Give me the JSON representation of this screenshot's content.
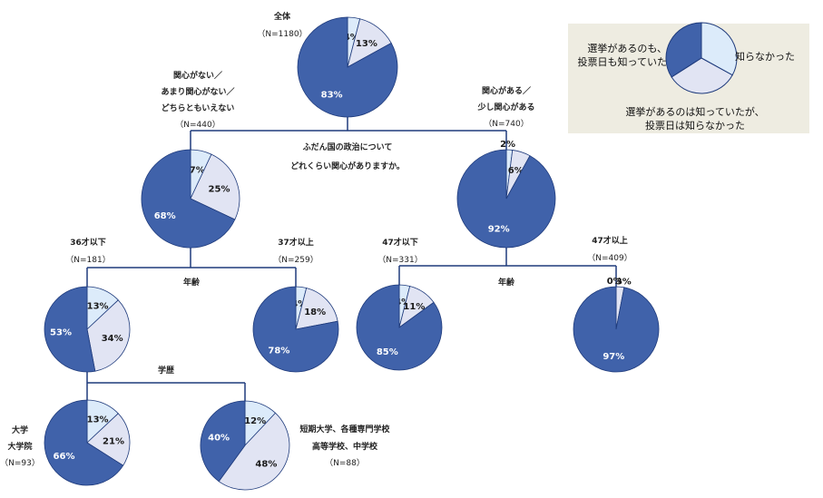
{
  "colors": {
    "unaware": "#dcebfa",
    "aware_not_date": "#e1e4f3",
    "aware_both": "#4062aa",
    "stroke": "#1f3b7c",
    "connector": "#1f3b7c",
    "legend_bg": "#eeece1"
  },
  "legend": {
    "items": [
      {
        "key": "unaware",
        "lines": [
          "知らなかった"
        ]
      },
      {
        "key": "aware_not_date",
        "lines": [
          "選挙があるのは知っていたが、",
          "投票日は知らなかった"
        ]
      },
      {
        "key": "aware_both",
        "lines": [
          "選挙があるのも、",
          "投票日も知っていた"
        ]
      }
    ]
  },
  "split_labels": {
    "interest": [
      "ふだん国の政治について",
      "どれくらい関心がありますか。"
    ],
    "age_left": "年齢",
    "age_right": "年齢",
    "education": "学歴"
  },
  "chart_data": {
    "type": "pie",
    "title": "",
    "series_order": [
      "unaware",
      "aware_not_date",
      "aware_both"
    ],
    "nodes": [
      {
        "id": "all",
        "label": [
          "全体"
        ],
        "n": "（N=1180）",
        "values": [
          4,
          13,
          83
        ]
      },
      {
        "id": "low_interest",
        "label": [
          "関心がない／",
          "あまり関心がない／",
          "どちらともいえない"
        ],
        "n": "（N=440）",
        "values": [
          7,
          25,
          68
        ]
      },
      {
        "id": "high_interest",
        "label": [
          "関心がある／",
          "少し関心がある"
        ],
        "n": "（N=740）",
        "values": [
          2,
          6,
          92
        ]
      },
      {
        "id": "under36",
        "label": [
          "36才以下"
        ],
        "n": "（N=181）",
        "values": [
          13,
          34,
          53
        ]
      },
      {
        "id": "over37",
        "label": [
          "37才以上"
        ],
        "n": "（N=259）",
        "values": [
          4,
          18,
          78
        ]
      },
      {
        "id": "under47",
        "label": [
          "47才以下"
        ],
        "n": "（N=331）",
        "values": [
          4,
          11,
          85
        ]
      },
      {
        "id": "over47",
        "label": [
          "47才以上"
        ],
        "n": "（N=409）",
        "values": [
          0,
          3,
          97
        ]
      },
      {
        "id": "university",
        "label": [
          "大学",
          "大学院"
        ],
        "n": "（N=93）",
        "values": [
          13,
          21,
          66
        ]
      },
      {
        "id": "other_school",
        "label": [
          "短期大学、各種専門学校",
          "高等学校、中学校"
        ],
        "n": "（N=88）",
        "values": [
          12,
          48,
          40
        ]
      }
    ]
  }
}
